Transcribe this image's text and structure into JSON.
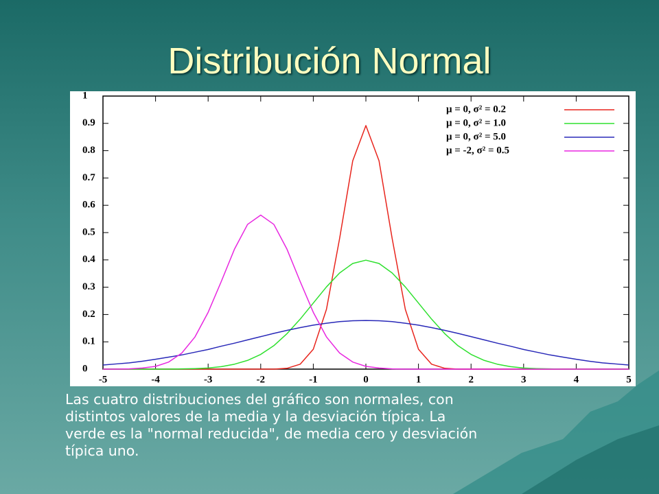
{
  "slide_title": "Distribución Normal",
  "chart_data": {
    "type": "line",
    "x": [
      -5,
      -4.75,
      -4.5,
      -4.25,
      -4,
      -3.75,
      -3.5,
      -3.25,
      -3,
      -2.75,
      -2.5,
      -2.25,
      -2,
      -1.75,
      -1.5,
      -1.25,
      -1,
      -0.75,
      -0.5,
      -0.25,
      0,
      0.25,
      0.5,
      0.75,
      1,
      1.25,
      1.5,
      1.75,
      2,
      2.25,
      2.5,
      2.75,
      3,
      3.25,
      3.5,
      3.75,
      4,
      4.25,
      4.5,
      4.75,
      5
    ],
    "series": [
      {
        "name": "μ =  0, σ² = 0.2",
        "color": "#e8241c",
        "values": [
          0,
          0,
          0,
          0,
          0,
          0,
          0,
          0,
          0,
          0,
          0,
          0,
          0,
          0,
          0.003,
          0.018,
          0.073,
          0.219,
          0.478,
          0.763,
          0.892,
          0.763,
          0.478,
          0.219,
          0.073,
          0.018,
          0.003,
          0,
          0,
          0,
          0,
          0,
          0,
          0,
          0,
          0,
          0,
          0,
          0,
          0,
          0
        ]
      },
      {
        "name": "μ =  0, σ² = 1.0",
        "color": "#2ee02e",
        "values": [
          0,
          0,
          0,
          0,
          0,
          0,
          0.001,
          0.002,
          0.004,
          0.009,
          0.018,
          0.032,
          0.054,
          0.086,
          0.13,
          0.183,
          0.242,
          0.301,
          0.352,
          0.387,
          0.399,
          0.387,
          0.352,
          0.301,
          0.242,
          0.183,
          0.13,
          0.086,
          0.054,
          0.032,
          0.018,
          0.009,
          0.004,
          0.002,
          0.001,
          0,
          0,
          0,
          0,
          0,
          0
        ]
      },
      {
        "name": "μ =  0, σ² = 5.0",
        "color": "#2828b8",
        "values": [
          0.015,
          0.019,
          0.023,
          0.029,
          0.036,
          0.044,
          0.052,
          0.062,
          0.072,
          0.084,
          0.095,
          0.107,
          0.119,
          0.131,
          0.142,
          0.152,
          0.161,
          0.168,
          0.174,
          0.177,
          0.178,
          0.177,
          0.174,
          0.168,
          0.161,
          0.152,
          0.142,
          0.131,
          0.119,
          0.107,
          0.095,
          0.084,
          0.072,
          0.062,
          0.052,
          0.044,
          0.036,
          0.029,
          0.023,
          0.019,
          0.015
        ]
      },
      {
        "name": "μ = -2, σ² = 0.5",
        "color": "#e826e0",
        "values": [
          0,
          0,
          0.001,
          0.004,
          0.01,
          0.026,
          0.059,
          0.118,
          0.208,
          0.321,
          0.439,
          0.53,
          0.564,
          0.53,
          0.439,
          0.321,
          0.208,
          0.118,
          0.059,
          0.026,
          0.01,
          0.004,
          0.001,
          0,
          0,
          0,
          0,
          0,
          0,
          0,
          0,
          0,
          0,
          0,
          0,
          0,
          0,
          0,
          0,
          0,
          0
        ]
      }
    ],
    "xlim": [
      -5,
      5
    ],
    "xticks": [
      -5,
      -4,
      -3,
      -2,
      -1,
      0,
      1,
      2,
      3,
      4,
      5
    ],
    "ylim": [
      0,
      1
    ],
    "yticks": [
      0,
      0.1,
      0.2,
      0.3,
      0.4,
      0.5,
      0.6,
      0.7,
      0.8,
      0.9,
      1
    ],
    "legend": "top-right"
  },
  "caption_lines": [
    "Las cuatro distribuciones del gráfico son normales, con",
    "distintos valores de la media y la desviación típica. La",
    "verde es la \"normal reducida\", de media cero y desviación",
    "típica uno."
  ]
}
